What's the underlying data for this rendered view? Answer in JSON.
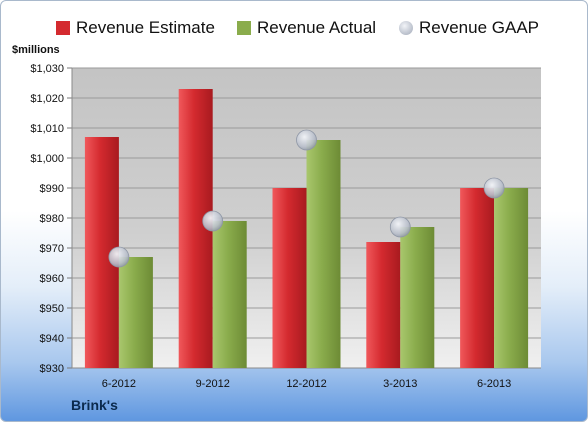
{
  "chart_data": {
    "type": "bar",
    "ylabel": "$millions",
    "ylim": [
      930,
      1030
    ],
    "yticks": [
      "$930",
      "$940",
      "$950",
      "$960",
      "$970",
      "$980",
      "$990",
      "$1,000",
      "$1,010",
      "$1,020",
      "$1,030"
    ],
    "categories": [
      "6-2012",
      "9-2012",
      "12-2012",
      "3-2013",
      "6-2013"
    ],
    "series": [
      {
        "name": "Revenue Estimate",
        "kind": "bar",
        "color": "#d42a2f",
        "values": [
          1007,
          1023,
          990,
          972,
          990
        ]
      },
      {
        "name": "Revenue Actual",
        "kind": "bar",
        "color": "#8aac4c",
        "values": [
          967,
          979,
          1006,
          977,
          990
        ]
      },
      {
        "name": "Revenue GAAP",
        "kind": "marker",
        "color": "#b9bfcb",
        "values": [
          967,
          979,
          1006,
          977,
          990
        ]
      }
    ],
    "grid": true,
    "legend": "top",
    "footer": "Brink's"
  }
}
